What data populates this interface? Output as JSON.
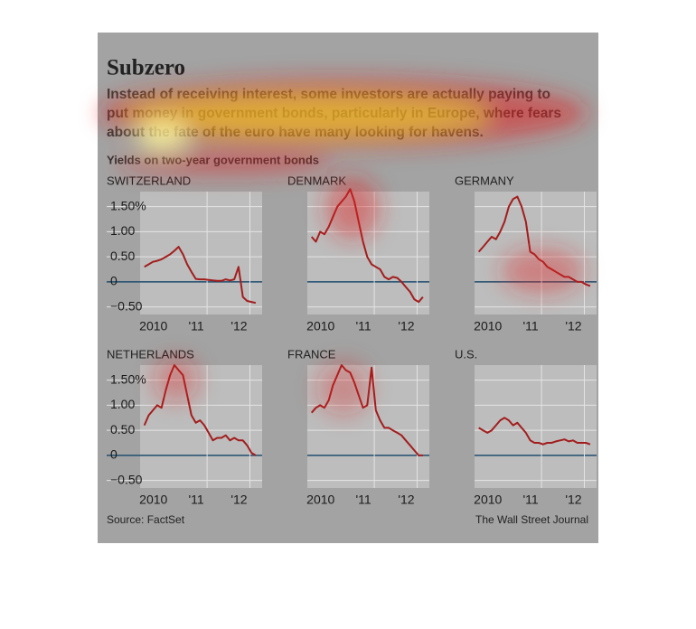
{
  "title": "Subzero",
  "subtitle": [
    "Instead of receiving interest, some investors are actually paying to",
    "put money in government bonds, particularly in Europe, where fears",
    "about the fate of the euro have many looking for havens."
  ],
  "chart_label": "Yields on two-year government bonds",
  "axes": {
    "x": [
      2010.0,
      2010.1,
      2010.2,
      2010.3,
      2010.4,
      2010.5,
      2010.6,
      2010.7,
      2010.8,
      2010.9,
      2011.0,
      2011.1,
      2011.2,
      2011.3,
      2011.4,
      2011.5,
      2011.6,
      2011.7,
      2011.8,
      2011.9,
      2012.0,
      2012.1,
      2012.2,
      2012.3,
      2012.4,
      2012.5,
      2012.6
    ],
    "xlim": [
      2009.9,
      2012.75
    ],
    "xticks": [
      {
        "value": 2010,
        "label": "2010"
      },
      {
        "value": 2011,
        "label": "'11"
      },
      {
        "value": 2012,
        "label": "'12"
      }
    ],
    "ylim": [
      -0.65,
      1.8
    ],
    "yticks": [
      {
        "value": 1.5,
        "label": "1.50%"
      },
      {
        "value": 1.0,
        "label": "1.00"
      },
      {
        "value": 0.5,
        "label": "0.50"
      },
      0,
      {
        "value": -0.5,
        "label": "−0.50"
      }
    ]
  },
  "chart_data": [
    {
      "type": "line",
      "title": "SWITZERLAND",
      "color": "#a31d1d",
      "values": [
        0.3,
        0.35,
        0.4,
        0.42,
        0.45,
        0.5,
        0.55,
        0.62,
        0.7,
        0.55,
        0.35,
        0.2,
        0.06,
        0.05,
        0.05,
        0.04,
        0.03,
        0.02,
        0.02,
        0.05,
        0.03,
        0.05,
        0.3,
        -0.3,
        -0.38,
        -0.4,
        -0.42
      ]
    },
    {
      "type": "line",
      "title": "DENMARK",
      "color": "#a31d1d",
      "values": [
        0.9,
        0.8,
        1.0,
        0.95,
        1.1,
        1.3,
        1.5,
        1.6,
        1.7,
        1.85,
        1.6,
        1.2,
        0.8,
        0.5,
        0.35,
        0.3,
        0.25,
        0.1,
        0.05,
        0.1,
        0.08,
        0.0,
        -0.1,
        -0.2,
        -0.35,
        -0.4,
        -0.3
      ]
    },
    {
      "type": "line",
      "title": "GERMANY",
      "color": "#a31d1d",
      "values": [
        0.6,
        0.7,
        0.8,
        0.9,
        0.85,
        1.0,
        1.2,
        1.5,
        1.65,
        1.7,
        1.5,
        1.2,
        0.6,
        0.55,
        0.45,
        0.4,
        0.3,
        0.25,
        0.2,
        0.15,
        0.1,
        0.1,
        0.05,
        0.0,
        0.0,
        -0.05,
        -0.08
      ]
    },
    {
      "type": "line",
      "title": "NETHERLANDS",
      "color": "#a31d1d",
      "values": [
        0.6,
        0.8,
        0.9,
        1.0,
        0.95,
        1.3,
        1.6,
        1.8,
        1.7,
        1.6,
        1.2,
        0.8,
        0.65,
        0.7,
        0.6,
        0.45,
        0.3,
        0.35,
        0.35,
        0.4,
        0.3,
        0.35,
        0.3,
        0.3,
        0.2,
        0.05,
        0.0
      ]
    },
    {
      "type": "line",
      "title": "FRANCE",
      "color": "#a31d1d",
      "values": [
        0.85,
        0.95,
        1.0,
        0.95,
        1.1,
        1.4,
        1.6,
        1.8,
        1.7,
        1.65,
        1.45,
        1.2,
        0.95,
        1.0,
        1.75,
        0.9,
        0.7,
        0.55,
        0.55,
        0.5,
        0.45,
        0.4,
        0.3,
        0.2,
        0.1,
        0.0,
        0.0
      ]
    },
    {
      "type": "line",
      "title": "U.S.",
      "color": "#a31d1d",
      "values": [
        0.55,
        0.5,
        0.45,
        0.5,
        0.6,
        0.7,
        0.75,
        0.7,
        0.6,
        0.65,
        0.55,
        0.45,
        0.3,
        0.25,
        0.25,
        0.22,
        0.25,
        0.25,
        0.28,
        0.3,
        0.32,
        0.28,
        0.3,
        0.25,
        0.25,
        0.25,
        0.22
      ]
    }
  ],
  "source": "Source: FactSet",
  "credit": "The Wall Street Journal"
}
